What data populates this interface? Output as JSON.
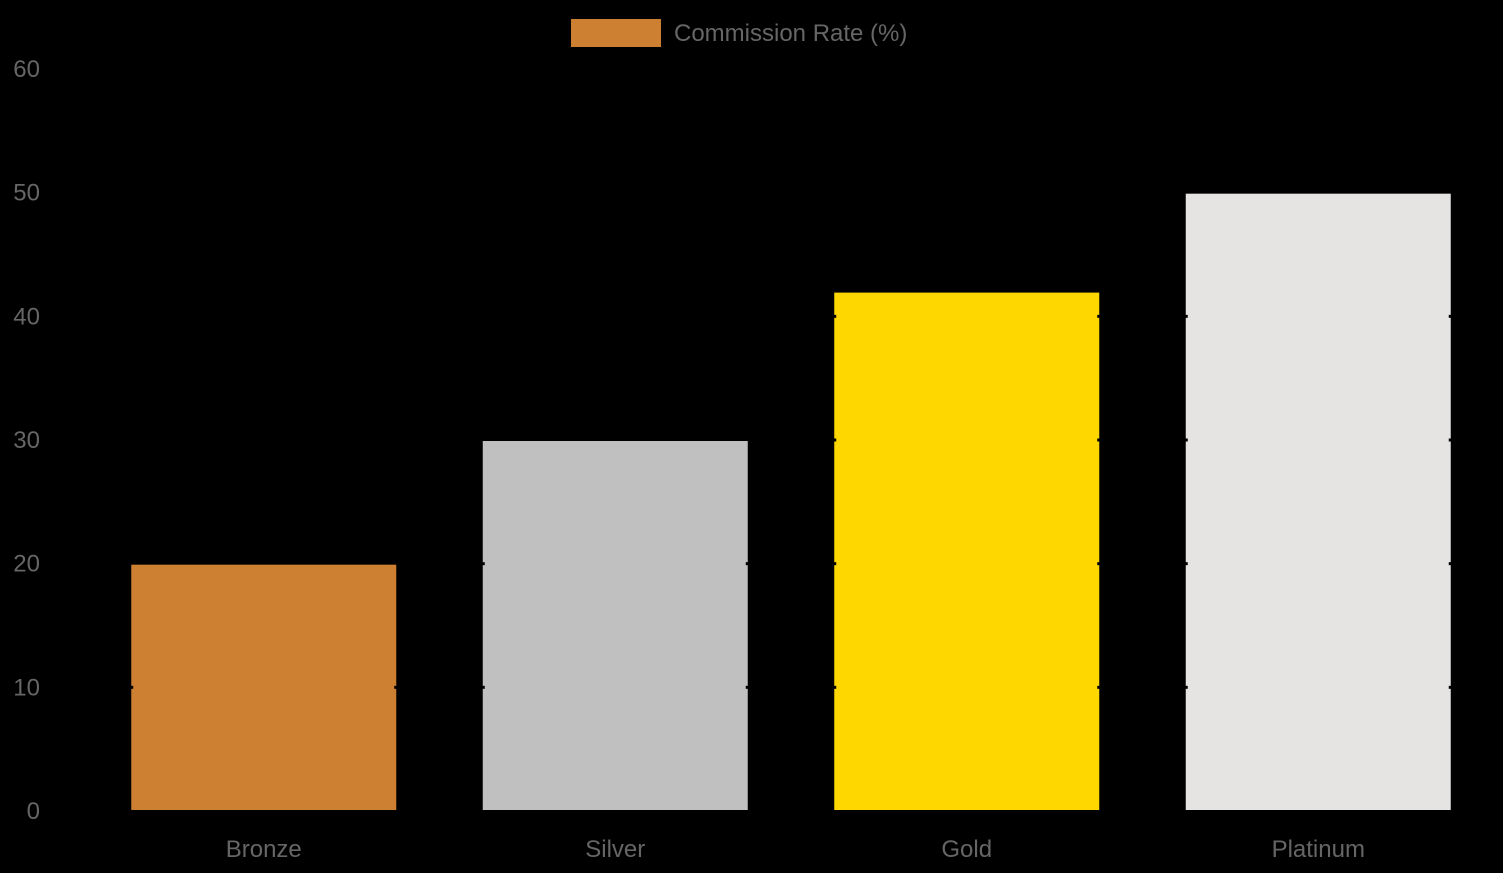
{
  "chart_data": {
    "type": "bar",
    "categories": [
      "Bronze",
      "Silver",
      "Gold",
      "Platinum"
    ],
    "series": [
      {
        "name": "Commission Rate (%)",
        "values": [
          20,
          30,
          42,
          50
        ],
        "colors": [
          "#CD7F32",
          "#C0C0C0",
          "#FFD700",
          "#E5E4E2"
        ]
      }
    ],
    "title": "",
    "xlabel": "",
    "ylabel": "",
    "ylim": [
      0,
      60
    ],
    "yticks": [
      0,
      10,
      20,
      30,
      40,
      50,
      60
    ],
    "grid": false,
    "legend_position": "top-center"
  },
  "colors": {
    "background": "#000000",
    "text": "#666666",
    "bar_border": "#000000"
  }
}
